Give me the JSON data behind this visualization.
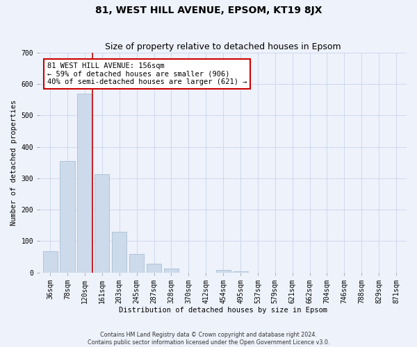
{
  "title": "81, WEST HILL AVENUE, EPSOM, KT19 8JX",
  "subtitle": "Size of property relative to detached houses in Epsom",
  "xlabel": "Distribution of detached houses by size in Epsom",
  "ylabel": "Number of detached properties",
  "footer_line1": "Contains HM Land Registry data © Crown copyright and database right 2024.",
  "footer_line2": "Contains public sector information licensed under the Open Government Licence v3.0.",
  "bar_labels": [
    "36sqm",
    "78sqm",
    "120sqm",
    "161sqm",
    "203sqm",
    "245sqm",
    "287sqm",
    "328sqm",
    "370sqm",
    "412sqm",
    "454sqm",
    "495sqm",
    "537sqm",
    "579sqm",
    "621sqm",
    "662sqm",
    "704sqm",
    "746sqm",
    "788sqm",
    "829sqm",
    "871sqm"
  ],
  "bar_values": [
    68,
    355,
    568,
    313,
    130,
    58,
    28,
    13,
    0,
    0,
    9,
    4,
    0,
    0,
    0,
    0,
    0,
    0,
    0,
    0,
    0
  ],
  "bar_color": "#cddaeb",
  "bar_edgecolor": "#a8bfd4",
  "property_line_color": "#cc0000",
  "annotation_text": "81 WEST HILL AVENUE: 156sqm\n← 59% of detached houses are smaller (906)\n40% of semi-detached houses are larger (621) →",
  "annotation_box_color": "#ffffff",
  "annotation_box_edgecolor": "#cc0000",
  "ylim": [
    0,
    700
  ],
  "yticks": [
    0,
    100,
    200,
    300,
    400,
    500,
    600,
    700
  ],
  "grid_color": "#cdd8ee",
  "background_color": "#eef2fb",
  "title_fontsize": 10,
  "subtitle_fontsize": 9,
  "axis_fontsize": 7.5,
  "tick_fontsize": 7,
  "footer_fontsize": 5.8
}
